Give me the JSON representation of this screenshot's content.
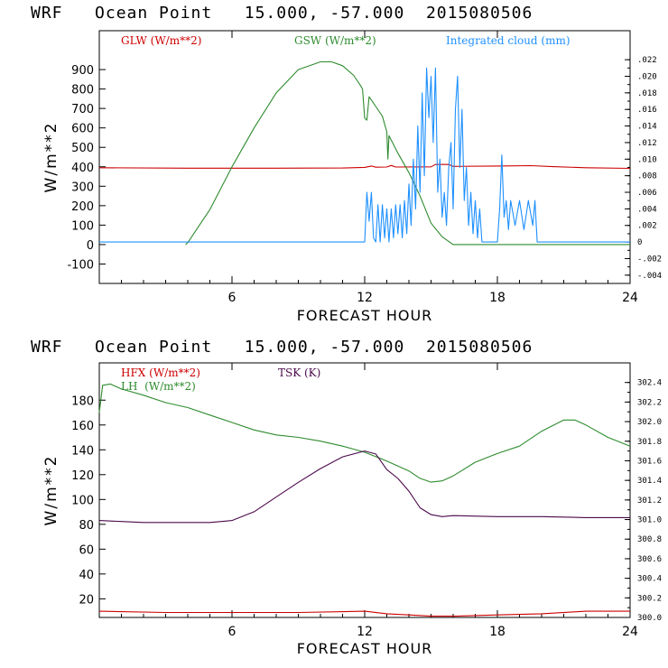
{
  "chart_data": [
    {
      "type": "line",
      "title": "WRF   Ocean Point   15.000, -57.000  2015080506",
      "xlabel": "FORECAST HOUR",
      "ylabel": "W/m**2",
      "xlim": [
        0,
        24
      ],
      "ylim": [
        -200,
        1100
      ],
      "xticks": [
        "6",
        "12",
        "18",
        "24"
      ],
      "yticks": [
        "900",
        "800",
        "700",
        "600",
        "500",
        "400",
        "300",
        "200",
        "100",
        "0",
        "-100"
      ],
      "y2lim": [
        -0.005,
        0.0255
      ],
      "y2ticks": [
        ".022",
        ".020",
        ".018",
        ".016",
        ".014",
        ".012",
        ".010",
        ".008",
        ".006",
        ".004",
        ".002",
        "0",
        "-.002",
        "-.004"
      ],
      "legend": [
        {
          "label": "GLW (W/m**2)",
          "color": "#cc0000"
        },
        {
          "label": "GSW (W/m**2)",
          "color": "#2e8b2e"
        },
        {
          "label": "Integrated cloud (mm)",
          "color": "#1e90ff"
        }
      ],
      "series": [
        {
          "name": "GLW (W/m**2)",
          "color": "#cc0000",
          "axis": "left",
          "points": [
            [
              0,
              395
            ],
            [
              4,
              393
            ],
            [
              8,
              393
            ],
            [
              11,
              394
            ],
            [
              12,
              397
            ],
            [
              12.3,
              404
            ],
            [
              12.5,
              398
            ],
            [
              13,
              399
            ],
            [
              13.2,
              407
            ],
            [
              13.4,
              399
            ],
            [
              15,
              400
            ],
            [
              15.2,
              412
            ],
            [
              15.8,
              412
            ],
            [
              16,
              402
            ],
            [
              18,
              404
            ],
            [
              19.5,
              406
            ],
            [
              20.5,
              401
            ],
            [
              22,
              395
            ],
            [
              24,
              392
            ]
          ]
        },
        {
          "name": "GSW (W/m**2)",
          "color": "#2e8b2e",
          "axis": "left",
          "points": [
            [
              3.9,
              0
            ],
            [
              4,
              10
            ],
            [
              5,
              180
            ],
            [
              6,
              400
            ],
            [
              7,
              600
            ],
            [
              8,
              780
            ],
            [
              9,
              900
            ],
            [
              10,
              940
            ],
            [
              10.5,
              940
            ],
            [
              11,
              920
            ],
            [
              11.5,
              870
            ],
            [
              11.8,
              820
            ],
            [
              11.9,
              800
            ],
            [
              12,
              650
            ],
            [
              12.1,
              640
            ],
            [
              12.2,
              760
            ],
            [
              12.5,
              710
            ],
            [
              12.8,
              660
            ],
            [
              13,
              580
            ],
            [
              13.05,
              440
            ],
            [
              13.1,
              560
            ],
            [
              13.5,
              470
            ],
            [
              14,
              370
            ],
            [
              14.5,
              250
            ],
            [
              15,
              110
            ],
            [
              15.5,
              40
            ],
            [
              16,
              0
            ],
            [
              24,
              0
            ]
          ]
        },
        {
          "name": "Integrated cloud (mm)",
          "color": "#1e90ff",
          "axis": "right",
          "points": [
            [
              0,
              0
            ],
            [
              12,
              0
            ],
            [
              12.1,
              0.006
            ],
            [
              12.2,
              0.0025
            ],
            [
              12.3,
              0.006
            ],
            [
              12.4,
              0.0005
            ],
            [
              12.5,
              0
            ],
            [
              12.6,
              0.0045
            ],
            [
              12.7,
              0
            ],
            [
              12.8,
              0.0045
            ],
            [
              12.9,
              0.0005
            ],
            [
              13,
              0.004
            ],
            [
              13.1,
              0
            ],
            [
              13.2,
              0.004
            ],
            [
              13.3,
              0.0005
            ],
            [
              13.4,
              0.0045
            ],
            [
              13.5,
              0.001
            ],
            [
              13.6,
              0.0045
            ],
            [
              13.7,
              0.0005
            ],
            [
              13.8,
              0.005
            ],
            [
              13.9,
              0.001
            ],
            [
              14,
              0.007
            ],
            [
              14.1,
              0.002
            ],
            [
              14.2,
              0.01
            ],
            [
              14.3,
              0.004
            ],
            [
              14.4,
              0.014
            ],
            [
              14.5,
              0.006
            ],
            [
              14.6,
              0.018
            ],
            [
              14.7,
              0.008
            ],
            [
              14.8,
              0.021
            ],
            [
              14.9,
              0.015
            ],
            [
              15,
              0.02
            ],
            [
              15.1,
              0.012
            ],
            [
              15.2,
              0.021
            ],
            [
              15.3,
              0.006
            ],
            [
              15.4,
              0.01
            ],
            [
              15.5,
              0.003
            ],
            [
              15.6,
              0.006
            ],
            [
              15.7,
              0.002
            ],
            [
              15.8,
              0.009
            ],
            [
              15.9,
              0.012
            ],
            [
              16,
              0.004
            ],
            [
              16.1,
              0.016
            ],
            [
              16.2,
              0.02
            ],
            [
              16.3,
              0.009
            ],
            [
              16.4,
              0.016
            ],
            [
              16.5,
              0.005
            ],
            [
              16.6,
              0.009
            ],
            [
              16.7,
              0.002
            ],
            [
              16.8,
              0.006
            ],
            [
              16.9,
              0.001
            ],
            [
              17,
              0.005
            ],
            [
              17.1,
              0.0005
            ],
            [
              17.2,
              0.004
            ],
            [
              17.3,
              0
            ],
            [
              18,
              0
            ],
            [
              18.1,
              0.004
            ],
            [
              18.2,
              0.0105
            ],
            [
              18.3,
              0.003
            ],
            [
              18.4,
              0.005
            ],
            [
              18.5,
              0.0015
            ],
            [
              18.6,
              0.005
            ],
            [
              18.8,
              0.002
            ],
            [
              19,
              0.005
            ],
            [
              19.2,
              0.0015
            ],
            [
              19.4,
              0.005
            ],
            [
              19.6,
              0.002
            ],
            [
              19.7,
              0.005
            ],
            [
              19.8,
              0
            ],
            [
              24,
              0
            ]
          ]
        }
      ]
    },
    {
      "type": "line",
      "title": "WRF   Ocean Point   15.000, -57.000  2015080506",
      "xlabel": "FORECAST HOUR",
      "ylabel": "W/m**2",
      "xlim": [
        0,
        24
      ],
      "ylim": [
        5,
        210
      ],
      "xticks": [
        "6",
        "12",
        "18",
        "24"
      ],
      "yticks": [
        "180",
        "160",
        "140",
        "120",
        "100",
        "80",
        "60",
        "40",
        "20"
      ],
      "y2lim": [
        300.0,
        302.6
      ],
      "y2ticks": [
        "302.4",
        "302.2",
        "302.0",
        "301.8",
        "301.6",
        "301.4",
        "301.2",
        "301.0",
        "300.8",
        "300.6",
        "300.4",
        "300.2",
        "300.0"
      ],
      "legend": [
        {
          "label": "HFX (W/m**2)",
          "color": "#cc0000"
        },
        {
          "label": "LH  (W/m**2)",
          "color": "#2e8b2e"
        },
        {
          "label": "TSK (K)",
          "color": "#4b0a4b"
        }
      ],
      "series": [
        {
          "name": "HFX (W/m**2)",
          "color": "#cc0000",
          "axis": "left",
          "points": [
            [
              0,
              10
            ],
            [
              3,
              9
            ],
            [
              6,
              9
            ],
            [
              9,
              9
            ],
            [
              12,
              10
            ],
            [
              13,
              8
            ],
            [
              14,
              7
            ],
            [
              15,
              6
            ],
            [
              16,
              6
            ],
            [
              18,
              7
            ],
            [
              20,
              8
            ],
            [
              22,
              10
            ],
            [
              24,
              10
            ]
          ]
        },
        {
          "name": "LH (W/m**2)",
          "color": "#2e8b2e",
          "axis": "left",
          "points": [
            [
              0,
              170
            ],
            [
              0.15,
              192
            ],
            [
              0.5,
              193
            ],
            [
              1,
              189
            ],
            [
              2,
              184
            ],
            [
              3,
              178
            ],
            [
              4,
              174
            ],
            [
              5,
              168
            ],
            [
              6,
              162
            ],
            [
              7,
              156
            ],
            [
              8,
              152
            ],
            [
              9,
              150
            ],
            [
              10,
              147
            ],
            [
              11,
              143
            ],
            [
              12,
              138
            ],
            [
              13,
              131
            ],
            [
              14,
              123
            ],
            [
              14.5,
              117
            ],
            [
              15,
              114
            ],
            [
              15.5,
              115
            ],
            [
              16,
              119
            ],
            [
              17,
              130
            ],
            [
              18,
              137
            ],
            [
              19,
              143
            ],
            [
              20,
              155
            ],
            [
              21,
              164
            ],
            [
              21.5,
              164
            ],
            [
              22,
              160
            ],
            [
              23,
              150
            ],
            [
              24,
              143
            ]
          ]
        },
        {
          "name": "TSK (K)",
          "color": "#4b0a4b",
          "axis": "right",
          "points": [
            [
              0,
              300.99
            ],
            [
              1,
              300.98
            ],
            [
              2,
              300.97
            ],
            [
              3,
              300.97
            ],
            [
              4,
              300.97
            ],
            [
              5,
              300.97
            ],
            [
              6,
              300.99
            ],
            [
              7,
              301.08
            ],
            [
              8,
              301.23
            ],
            [
              9,
              301.38
            ],
            [
              10,
              301.52
            ],
            [
              11,
              301.64
            ],
            [
              12,
              301.7
            ],
            [
              12.5,
              301.67
            ],
            [
              13,
              301.51
            ],
            [
              13.5,
              301.42
            ],
            [
              14,
              301.29
            ],
            [
              14.5,
              301.12
            ],
            [
              15,
              301.05
            ],
            [
              15.5,
              301.03
            ],
            [
              16,
              301.04
            ],
            [
              18,
              301.03
            ],
            [
              20,
              301.03
            ],
            [
              22,
              301.02
            ],
            [
              24,
              301.02
            ]
          ]
        }
      ]
    }
  ]
}
